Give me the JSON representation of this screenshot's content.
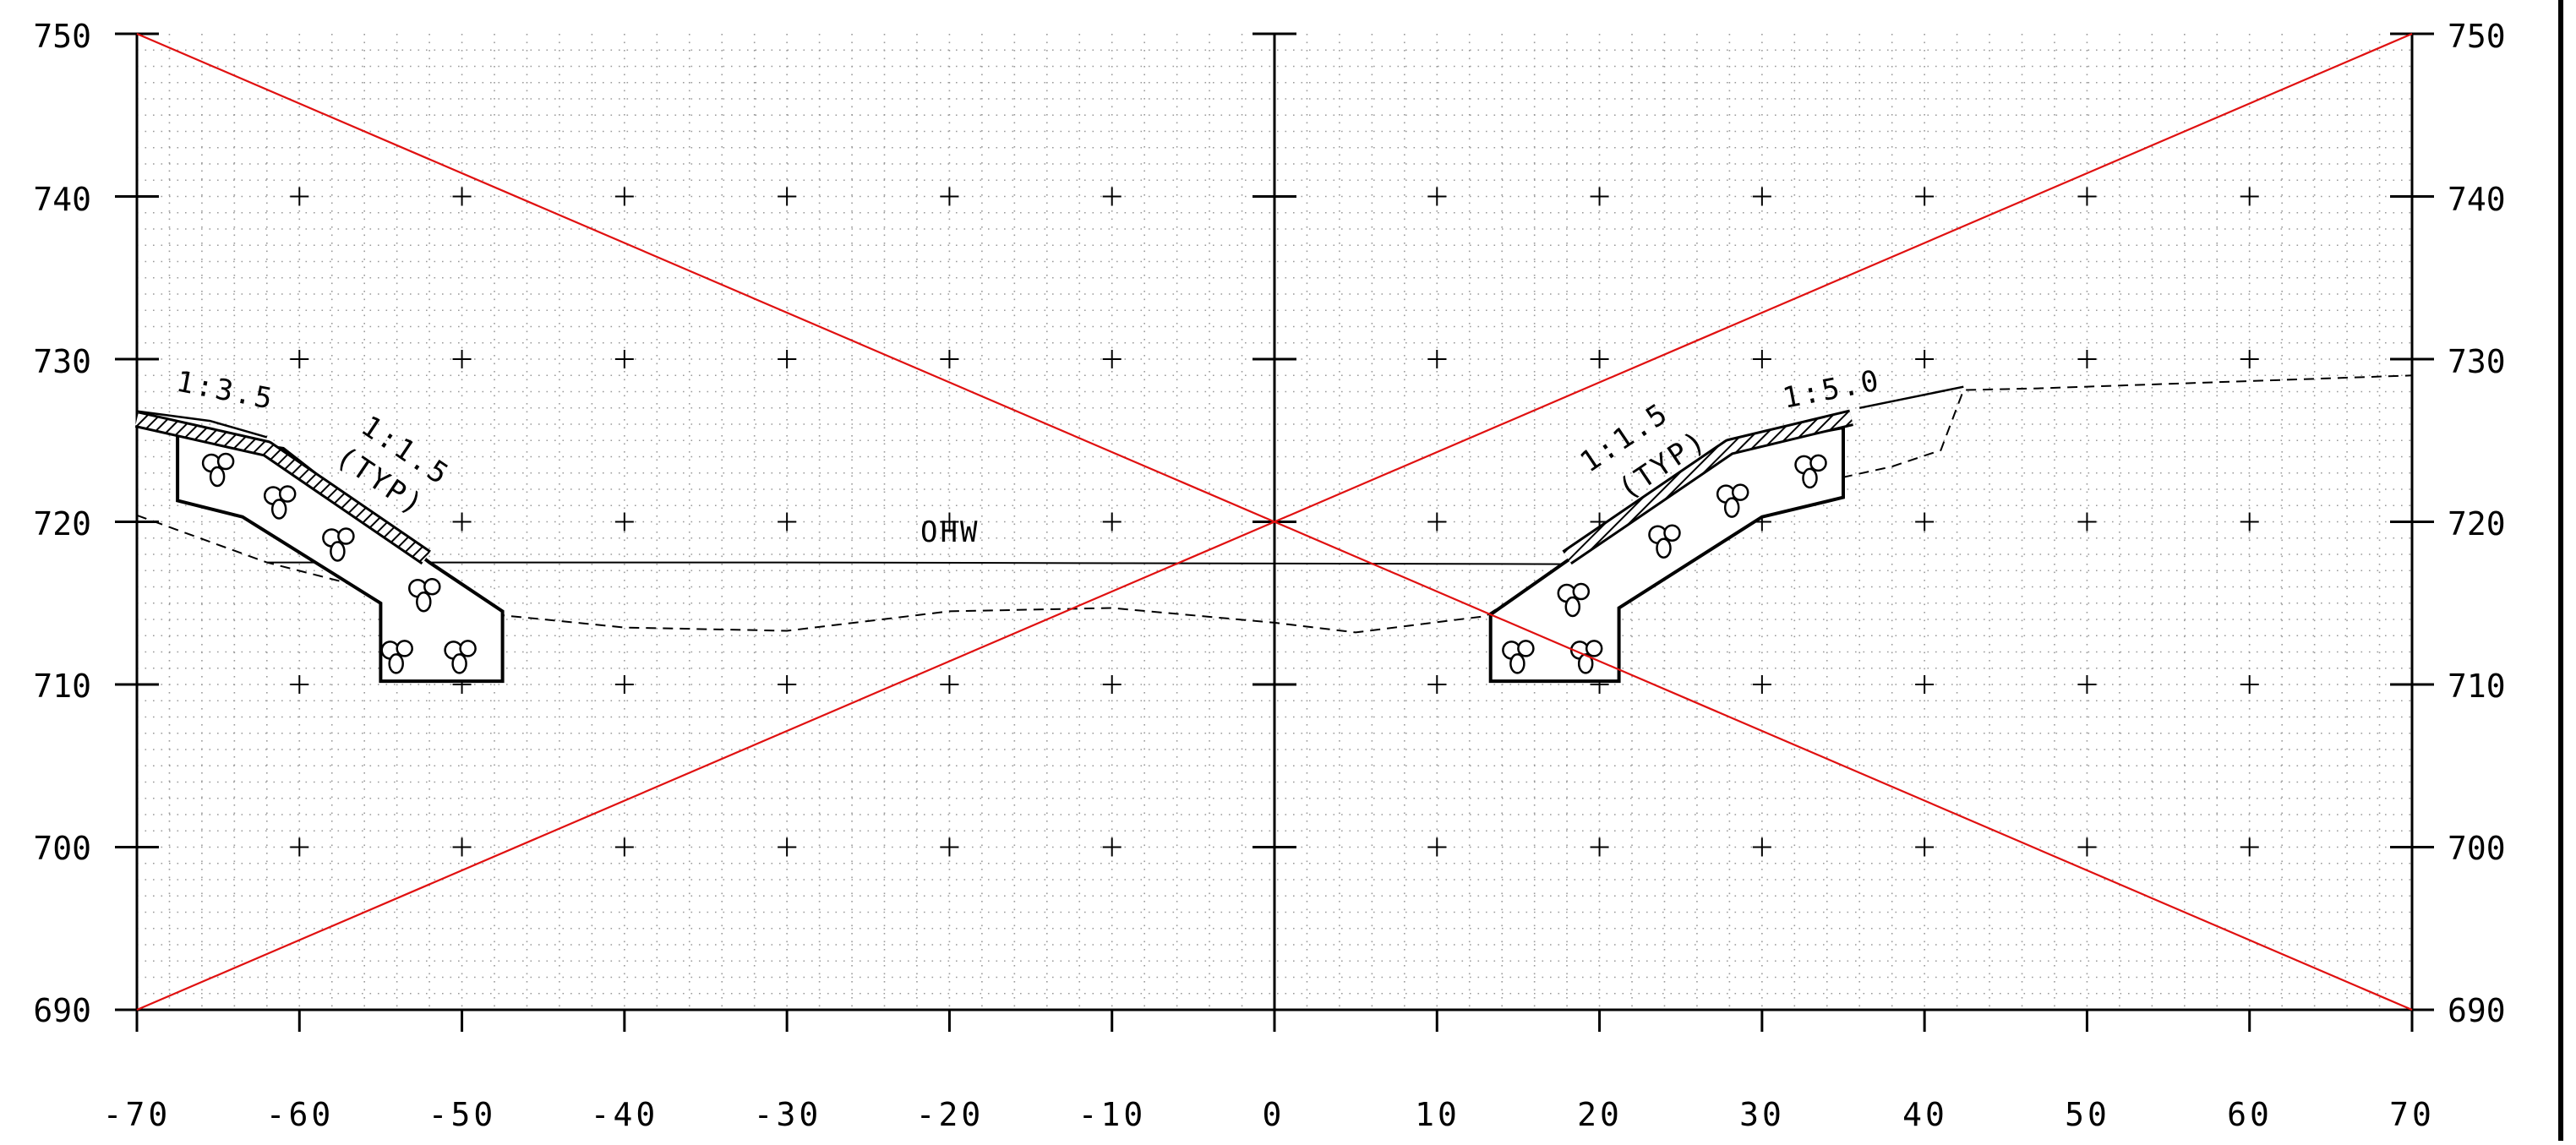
{
  "chart_data": {
    "type": "cross-section",
    "x_ticks": [
      "-70",
      "-60",
      "-50",
      "-40",
      "-30",
      "-20",
      "-10",
      "0",
      "10",
      "20",
      "30",
      "40",
      "50",
      "60",
      "70"
    ],
    "y_ticks_left": [
      "750",
      "740",
      "730",
      "720",
      "710",
      "700",
      "690"
    ],
    "y_ticks_right": [
      "750",
      "740",
      "730",
      "720",
      "710",
      "700",
      "690"
    ],
    "xlim": [
      -70,
      70
    ],
    "ylim": [
      690,
      750
    ],
    "grid": "dotted minor grid with crosshair marks at every 10 units",
    "labels": {
      "left_top_slope": "1:3.5",
      "left_side_slope_a": "1:1.5",
      "left_side_slope_b": "(TYP)",
      "right_side_slope_a": "1:1.5",
      "right_side_slope_b": "(TYP)",
      "right_top_slope": "1:5.0",
      "water_level": "OHW"
    },
    "colors": {
      "void_marks": "#e01010",
      "linework": "#000000"
    },
    "lines": {
      "ohw": {
        "x": [
          -62,
          -30,
          18
        ],
        "y": [
          717.5,
          717.5,
          717.4
        ]
      },
      "existing_ground_dashed": {
        "x": [
          -70,
          -62,
          -53,
          -48,
          -40,
          -30,
          -20,
          -10,
          0,
          5,
          13,
          17,
          20,
          25,
          29,
          33,
          38,
          41,
          42.4,
          47,
          70
        ],
        "y": [
          720.4,
          717.5,
          715.2,
          714.3,
          713.5,
          713.3,
          714.5,
          714.7,
          713.8,
          713.2,
          714.2,
          716.8,
          719.0,
          721.2,
          722.0,
          722.3,
          723.4,
          724.4,
          728.1,
          728.2,
          729.0
        ]
      },
      "left_existing_top": {
        "x": [
          -70,
          -65.5,
          -62
        ],
        "y": [
          726.8,
          726.2,
          725.2
        ]
      },
      "right_existing_top": {
        "x": [
          36,
          42.4
        ],
        "y": [
          727.0,
          728.3
        ]
      },
      "left_riprap": {
        "x": [
          -67.5,
          -67.5,
          -63.5,
          -55,
          -55,
          -47.5,
          -47.5,
          -52,
          -61,
          -67.5
        ],
        "y": [
          725.5,
          721.3,
          720.3,
          715.0,
          710.2,
          710.2,
          714.5,
          717.5,
          724.5,
          725.5
        ]
      },
      "right_riprap": {
        "x": [
          35,
          35,
          30,
          21.2,
          21.2,
          13.3,
          13.3,
          18,
          28,
          35
        ],
        "y": [
          725.8,
          721.5,
          720.3,
          714.7,
          710.2,
          710.2,
          714.3,
          717.6,
          724.5,
          725.8
        ]
      },
      "left_topsoil": {
        "x": [
          -70,
          -62,
          -52.2
        ],
        "y": [
          726.3,
          724.5,
          717.8
        ]
      },
      "right_topsoil": {
        "x": [
          18,
          28,
          35.5
        ],
        "y": [
          717.8,
          724.6,
          726.4
        ]
      },
      "void_x_1": {
        "x": [
          -70,
          70
        ],
        "y": [
          750,
          690
        ]
      },
      "void_x_2": {
        "x": [
          -70,
          70
        ],
        "y": [
          690,
          750
        ]
      }
    },
    "rock_symbols": [
      {
        "x": -65,
        "y": 723.3
      },
      {
        "x": -61.2,
        "y": 721.3
      },
      {
        "x": -57.6,
        "y": 718.7
      },
      {
        "x": -52.3,
        "y": 715.6
      },
      {
        "x": -54.0,
        "y": 711.8
      },
      {
        "x": -50.1,
        "y": 711.8
      },
      {
        "x": 15.0,
        "y": 711.8
      },
      {
        "x": 19.2,
        "y": 711.8
      },
      {
        "x": 18.4,
        "y": 715.3
      },
      {
        "x": 24.0,
        "y": 718.9
      },
      {
        "x": 28.2,
        "y": 721.4
      },
      {
        "x": 33.0,
        "y": 723.2
      }
    ]
  }
}
